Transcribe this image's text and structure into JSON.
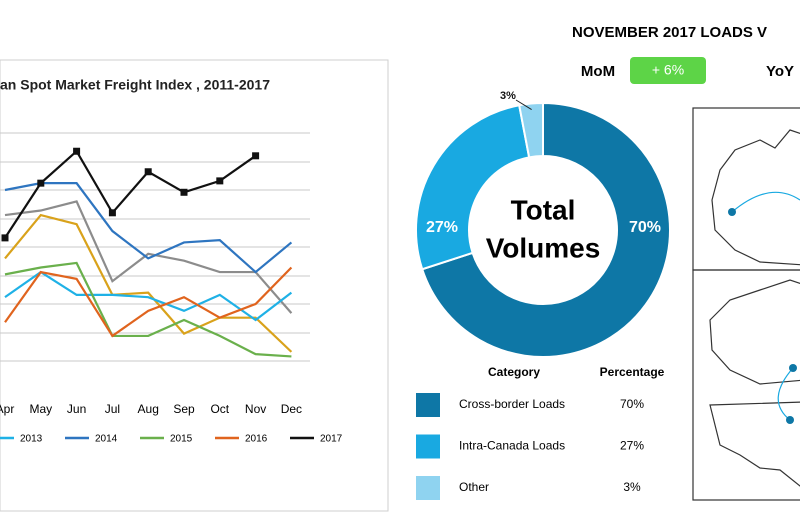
{
  "header": {
    "title": "NOVEMBER 2017 LOADS V",
    "mom_label": "MoM",
    "mom_value": "+ 6%",
    "yoy_label": "YoY"
  },
  "chart_data": [
    {
      "type": "line",
      "title": "an Spot Market Freight Index , 2011-2017",
      "categories": [
        "Apr",
        "May",
        "Jun",
        "Jul",
        "Aug",
        "Sep",
        "Oct",
        "Nov",
        "Dec"
      ],
      "ylim": [
        0,
        100
      ],
      "series": [
        {
          "color": "#8c8c8c",
          "values": [
            64,
            66,
            70,
            35,
            47,
            44,
            39,
            39,
            21
          ]
        },
        {
          "color": "#d9a21b",
          "values": [
            45,
            64,
            60,
            29,
            30,
            12,
            19,
            19,
            4
          ]
        },
        {
          "name": "2013",
          "color": "#1fb1e6",
          "values": [
            28,
            39,
            29,
            29,
            28,
            22,
            29,
            18,
            30
          ]
        },
        {
          "name": "2014",
          "color": "#2e75c0",
          "values": [
            75,
            78,
            78,
            57,
            45,
            52,
            53,
            39,
            52
          ]
        },
        {
          "name": "2015",
          "color": "#6ab04c",
          "values": [
            38,
            41,
            43,
            11,
            11,
            18,
            11,
            3,
            2
          ]
        },
        {
          "name": "2016",
          "color": "#e0641e",
          "values": [
            17,
            39,
            36,
            11,
            22,
            28,
            19,
            25,
            41
          ]
        },
        {
          "name": "2017",
          "color": "#111111",
          "marker": "square",
          "values": [
            54,
            78,
            92,
            65,
            83,
            74,
            79,
            90,
            null
          ]
        }
      ]
    },
    {
      "type": "donut",
      "center_text": [
        "Total",
        "Volumes"
      ],
      "categories": [
        "Cross-border Loads",
        "Intra-Canada Loads",
        "Other"
      ],
      "values": [
        70,
        27,
        3
      ],
      "value_labels": [
        "70%",
        "27%",
        "3%"
      ],
      "colors": [
        "#0e77a6",
        "#19a9e1",
        "#8fd3f0"
      ]
    }
  ],
  "table": {
    "columns": [
      "Category",
      "Percentage"
    ],
    "rows": [
      [
        "Cross-border Loads",
        "70%"
      ],
      [
        "Intra-Canada Loads",
        "27%"
      ],
      [
        "Other",
        "3%"
      ]
    ]
  }
}
